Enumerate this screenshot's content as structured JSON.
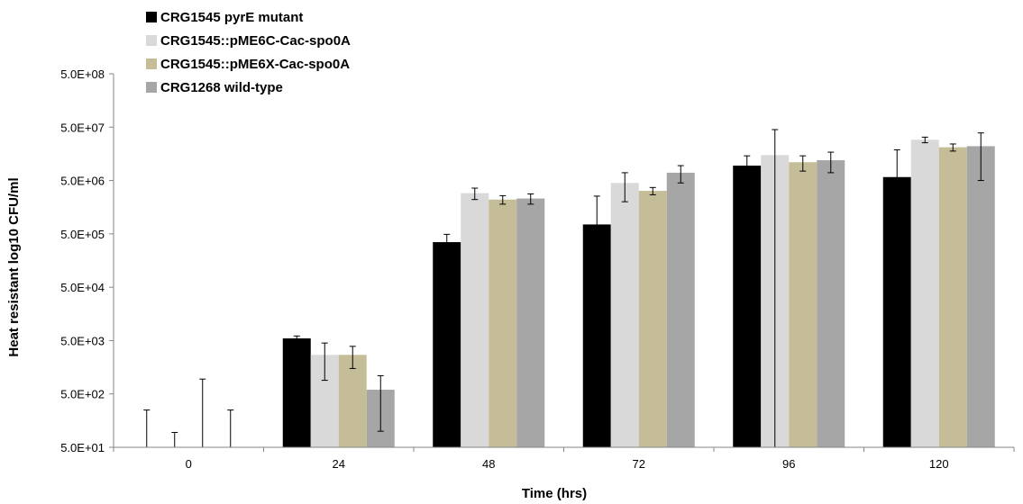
{
  "chart_data": {
    "type": "bar",
    "title": "",
    "xlabel": "Time (hrs)",
    "ylabel": "Heat resistant log10 CFU/ml",
    "yscale": "log",
    "ylim": [
      50,
      500000000
    ],
    "y_ticks": [
      {
        "value": 50,
        "label": "5.0E+01"
      },
      {
        "value": 500,
        "label": "5.0E+02"
      },
      {
        "value": 5000,
        "label": "5.0E+03"
      },
      {
        "value": 50000,
        "label": "5.0E+04"
      },
      {
        "value": 500000,
        "label": "5.0E+05"
      },
      {
        "value": 5000000,
        "label": "5.0E+06"
      },
      {
        "value": 50000000,
        "label": "5.0E+07"
      },
      {
        "value": 500000000,
        "label": "5.0E+08"
      }
    ],
    "categories": [
      "0",
      "24",
      "48",
      "72",
      "96",
      "120"
    ],
    "grid": false,
    "legend_position": "top-left",
    "series": [
      {
        "name": "CRG1545 pyrE mutant",
        "color": "#000000",
        "values": [
          50,
          5500,
          350000,
          750000,
          9500000,
          5800000
        ],
        "errors": [
          200,
          600,
          140000,
          1800000,
          5000000,
          13000000
        ]
      },
      {
        "name": "CRG1545::pME6C-Cac-spo0A",
        "color": "#d9d9d9",
        "values": [
          50,
          2700,
          2900000,
          4500000,
          15000000,
          29000000
        ],
        "errors": [
          45,
          1800,
          700000,
          2500000,
          30000000,
          3500000
        ]
      },
      {
        "name": "CRG1545::pME6X-Cac-spo0A",
        "color": "#c4bd97",
        "values": [
          50,
          2700,
          2200000,
          3200000,
          11000000,
          21000000
        ],
        "errors": [
          900,
          1200,
          400000,
          500000,
          3500000,
          3200000
        ]
      },
      {
        "name": "CRG1268 wild-type",
        "color": "#a6a6a6",
        "values": [
          50,
          600,
          2300000,
          7000000,
          12000000,
          22000000
        ],
        "errors": [
          200,
          500,
          500000,
          2500000,
          5000000,
          17000000
        ]
      }
    ]
  }
}
